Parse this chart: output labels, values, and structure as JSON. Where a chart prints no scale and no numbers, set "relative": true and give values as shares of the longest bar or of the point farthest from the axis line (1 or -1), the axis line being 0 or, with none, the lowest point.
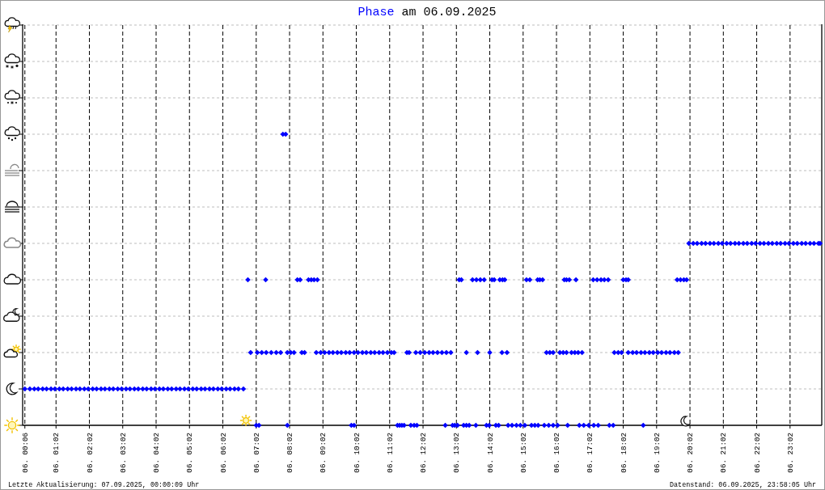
{
  "chart_data": {
    "type": "scatter",
    "title": "am 06.09.2025",
    "annotations": [
      "Letzte Aktualisierung: 07.09.2025, 00:00:09 Uhr",
      "Datenstand: 06.09.2025, 23:58:05 Uhr"
    ],
    "relative": true,
    "grid": true,
    "legend": "top",
    "marker": "diamond",
    "xlim": [
      "2025-09-06T00:02",
      "2025-09-06T23:59"
    ],
    "xticks": [
      {
        "value": "2025-09-06T00:06",
        "label": "06. 00:06"
      },
      {
        "value": "2025-09-06T01:02",
        "label": "06. 01:02"
      },
      {
        "value": "2025-09-06T02:02",
        "label": "06. 02:02"
      },
      {
        "value": "2025-09-06T03:02",
        "label": "06. 03:02"
      },
      {
        "value": "2025-09-06T04:02",
        "label": "06. 04:02"
      },
      {
        "value": "2025-09-06T05:02",
        "label": "06. 05:02"
      },
      {
        "value": "2025-09-06T06:02",
        "label": "06. 06:02"
      },
      {
        "value": "2025-09-06T07:02",
        "label": "06. 07:02"
      },
      {
        "value": "2025-09-06T08:02",
        "label": "06. 08:02"
      },
      {
        "value": "2025-09-06T09:02",
        "label": "06. 09:02"
      },
      {
        "value": "2025-09-06T10:02",
        "label": "06. 10:02"
      },
      {
        "value": "2025-09-06T11:02",
        "label": "06. 11:02"
      },
      {
        "value": "2025-09-06T12:02",
        "label": "06. 12:02"
      },
      {
        "value": "2025-09-06T13:02",
        "label": "06. 13:02"
      },
      {
        "value": "2025-09-06T14:02",
        "label": "06. 14:02"
      },
      {
        "value": "2025-09-06T15:02",
        "label": "06. 15:02"
      },
      {
        "value": "2025-09-06T16:02",
        "label": "06. 16:02"
      },
      {
        "value": "2025-09-06T17:02",
        "label": "06. 17:02"
      },
      {
        "value": "2025-09-06T18:02",
        "label": "06. 18:02"
      },
      {
        "value": "2025-09-06T19:02",
        "label": "06. 19:02"
      },
      {
        "value": "2025-09-06T20:02",
        "label": "06. 20:02"
      },
      {
        "value": "2025-09-06T21:02",
        "label": "06. 21:02"
      },
      {
        "value": "2025-09-06T22:02",
        "label": "06. 22:02"
      },
      {
        "value": "2025-09-06T23:02",
        "label": "06. 23:02"
      }
    ],
    "series": [
      {
        "name": "Phase",
        "color": "#0000ff",
        "x": [
          "2025-09-06T00:06",
          "2025-09-06T00:15",
          "2025-09-06T00:23",
          "2025-09-06T00:30",
          "2025-09-06T00:38",
          "2025-09-06T00:45",
          "2025-09-06T00:53",
          "2025-09-06T01:00",
          "2025-09-06T01:08",
          "2025-09-06T01:15",
          "2025-09-06T01:23",
          "2025-09-06T01:30",
          "2025-09-06T01:38",
          "2025-09-06T01:45",
          "2025-09-06T01:53",
          "2025-09-06T02:00",
          "2025-09-06T02:08",
          "2025-09-06T02:15",
          "2025-09-06T02:23",
          "2025-09-06T02:30",
          "2025-09-06T02:38",
          "2025-09-06T02:45",
          "2025-09-06T02:53",
          "2025-09-06T03:00",
          "2025-09-06T03:08",
          "2025-09-06T03:15",
          "2025-09-06T03:23",
          "2025-09-06T03:30",
          "2025-09-06T03:38",
          "2025-09-06T03:45",
          "2025-09-06T03:53",
          "2025-09-06T04:00",
          "2025-09-06T04:08",
          "2025-09-06T04:15",
          "2025-09-06T04:23",
          "2025-09-06T04:30",
          "2025-09-06T04:38",
          "2025-09-06T04:45",
          "2025-09-06T04:53",
          "2025-09-06T05:00",
          "2025-09-06T05:08",
          "2025-09-06T05:15",
          "2025-09-06T05:23",
          "2025-09-06T05:30",
          "2025-09-06T05:38",
          "2025-09-06T05:45",
          "2025-09-06T05:53",
          "2025-09-06T06:00",
          "2025-09-06T06:08",
          "2025-09-06T06:15",
          "2025-09-06T06:23",
          "2025-09-06T06:30",
          "2025-09-06T06:39",
          "2025-09-06T06:52",
          "2025-09-06T07:04",
          "2025-09-06T07:12",
          "2025-09-06T07:20",
          "2025-09-06T07:29",
          "2025-09-06T07:38",
          "2025-09-06T07:46",
          "2025-09-06T07:58",
          "2025-09-06T08:04",
          "2025-09-06T08:10",
          "2025-09-06T08:24",
          "2025-09-06T08:29",
          "2025-09-06T08:50",
          "2025-09-06T08:58",
          "2025-09-06T09:05",
          "2025-09-06T09:13",
          "2025-09-06T09:20",
          "2025-09-06T09:28",
          "2025-09-06T09:35",
          "2025-09-06T09:43",
          "2025-09-06T09:50",
          "2025-09-06T09:58",
          "2025-09-06T10:05",
          "2025-09-06T10:13",
          "2025-09-06T10:20",
          "2025-09-06T10:28",
          "2025-09-06T10:35",
          "2025-09-06T10:43",
          "2025-09-06T10:50",
          "2025-09-06T10:58",
          "2025-09-06T11:05",
          "2025-09-06T11:10",
          "2025-09-06T11:33",
          "2025-09-06T11:37",
          "2025-09-06T11:49",
          "2025-09-06T11:57",
          "2025-09-06T12:05",
          "2025-09-06T12:13",
          "2025-09-06T12:20",
          "2025-09-06T12:28",
          "2025-09-06T12:36",
          "2025-09-06T12:44",
          "2025-09-06T12:52",
          "2025-09-06T13:20",
          "2025-09-06T13:40",
          "2025-09-06T14:02",
          "2025-09-06T14:24",
          "2025-09-06T14:33",
          "2025-09-06T15:44",
          "2025-09-06T15:50",
          "2025-09-06T15:56",
          "2025-09-06T16:08",
          "2025-09-06T16:14",
          "2025-09-06T16:20",
          "2025-09-06T16:29",
          "2025-09-06T16:35",
          "2025-09-06T16:41",
          "2025-09-06T16:48",
          "2025-09-06T17:46",
          "2025-09-06T17:53",
          "2025-09-06T17:59",
          "2025-09-06T18:11",
          "2025-09-06T18:19",
          "2025-09-06T18:26",
          "2025-09-06T18:34",
          "2025-09-06T18:41",
          "2025-09-06T18:49",
          "2025-09-06T18:56",
          "2025-09-06T19:04",
          "2025-09-06T19:11",
          "2025-09-06T19:19",
          "2025-09-06T19:26",
          "2025-09-06T19:34",
          "2025-09-06T19:41",
          "2025-09-06T07:02",
          "2025-09-06T07:07",
          "2025-09-06T07:58",
          "2025-09-06T09:53",
          "2025-09-06T09:58",
          "2025-09-06T11:16",
          "2025-09-06T11:20",
          "2025-09-06T11:24",
          "2025-09-06T11:28",
          "2025-09-06T11:40",
          "2025-09-06T11:46",
          "2025-09-06T11:51",
          "2025-09-06T12:42",
          "2025-09-06T12:55",
          "2025-09-06T12:59",
          "2025-09-06T13:04",
          "2025-09-06T13:15",
          "2025-09-06T13:20",
          "2025-09-06T13:25",
          "2025-09-06T13:37",
          "2025-09-06T13:56",
          "2025-09-06T14:01",
          "2025-09-06T14:13",
          "2025-09-06T14:18",
          "2025-09-06T14:35",
          "2025-09-06T14:42",
          "2025-09-06T14:50",
          "2025-09-06T14:57",
          "2025-09-06T15:05",
          "2025-09-06T15:17",
          "2025-09-06T15:23",
          "2025-09-06T15:29",
          "2025-09-06T15:40",
          "2025-09-06T15:48",
          "2025-09-06T15:56",
          "2025-09-06T16:04",
          "2025-09-06T16:22",
          "2025-09-06T16:43",
          "2025-09-06T16:51",
          "2025-09-06T17:00",
          "2025-09-06T17:09",
          "2025-09-06T17:17",
          "2025-09-06T17:37",
          "2025-09-06T17:44",
          "2025-09-06T18:38",
          "2025-09-06T06:47",
          "2025-09-06T07:19",
          "2025-09-06T08:16",
          "2025-09-06T08:21",
          "2025-09-06T08:36",
          "2025-09-06T08:41",
          "2025-09-06T08:46",
          "2025-09-06T08:52",
          "2025-09-06T13:07",
          "2025-09-06T13:11",
          "2025-09-06T13:31",
          "2025-09-06T13:38",
          "2025-09-06T13:45",
          "2025-09-06T13:52",
          "2025-09-06T14:06",
          "2025-09-06T14:10",
          "2025-09-06T14:20",
          "2025-09-06T14:25",
          "2025-09-06T14:29",
          "2025-09-06T15:08",
          "2025-09-06T15:14",
          "2025-09-06T15:28",
          "2025-09-06T15:32",
          "2025-09-06T15:37",
          "2025-09-06T16:16",
          "2025-09-06T16:20",
          "2025-09-06T16:25",
          "2025-09-06T16:37",
          "2025-09-06T17:08",
          "2025-09-06T17:15",
          "2025-09-06T17:22",
          "2025-09-06T17:28",
          "2025-09-06T17:35",
          "2025-09-06T18:02",
          "2025-09-06T18:07",
          "2025-09-06T18:11",
          "2025-09-06T19:39",
          "2025-09-06T19:45",
          "2025-09-06T19:51",
          "2025-09-06T19:56",
          "2025-09-06T20:00",
          "2025-09-06T20:08",
          "2025-09-06T20:15",
          "2025-09-06T20:23",
          "2025-09-06T20:30",
          "2025-09-06T20:38",
          "2025-09-06T20:45",
          "2025-09-06T20:53",
          "2025-09-06T21:00",
          "2025-09-06T21:08",
          "2025-09-06T21:15",
          "2025-09-06T21:23",
          "2025-09-06T21:30",
          "2025-09-06T21:38",
          "2025-09-06T21:45",
          "2025-09-06T21:53",
          "2025-09-06T22:00",
          "2025-09-06T22:08",
          "2025-09-06T22:15",
          "2025-09-06T22:23",
          "2025-09-06T22:30",
          "2025-09-06T22:38",
          "2025-09-06T22:45",
          "2025-09-06T22:53",
          "2025-09-06T23:00",
          "2025-09-06T23:08",
          "2025-09-06T23:15",
          "2025-09-06T23:23",
          "2025-09-06T23:30",
          "2025-09-06T23:38",
          "2025-09-06T23:45",
          "2025-09-06T23:53",
          "2025-09-06T23:56",
          "2025-09-06T07:50",
          "2025-09-06T07:55"
        ],
        "values": [
          0.125,
          0.125,
          0.125,
          0.125,
          0.125,
          0.125,
          0.125,
          0.125,
          0.125,
          0.125,
          0.125,
          0.125,
          0.125,
          0.125,
          0.125,
          0.125,
          0.125,
          0.125,
          0.125,
          0.125,
          0.125,
          0.125,
          0.125,
          0.125,
          0.125,
          0.125,
          0.125,
          0.125,
          0.125,
          0.125,
          0.125,
          0.125,
          0.125,
          0.125,
          0.125,
          0.125,
          0.125,
          0.125,
          0.125,
          0.125,
          0.125,
          0.125,
          0.125,
          0.125,
          0.125,
          0.125,
          0.125,
          0.125,
          0.125,
          0.125,
          0.125,
          0.125,
          0.125,
          0.25,
          0.25,
          0.25,
          0.25,
          0.25,
          0.25,
          0.25,
          0.25,
          0.25,
          0.25,
          0.25,
          0.25,
          0.25,
          0.25,
          0.25,
          0.25,
          0.25,
          0.25,
          0.25,
          0.25,
          0.25,
          0.25,
          0.25,
          0.25,
          0.25,
          0.25,
          0.25,
          0.25,
          0.25,
          0.25,
          0.25,
          0.25,
          0.25,
          0.25,
          0.25,
          0.25,
          0.25,
          0.25,
          0.25,
          0.25,
          0.25,
          0.25,
          0.25,
          0.25,
          0.25,
          0.25,
          0.25,
          0.25,
          0.25,
          0.25,
          0.25,
          0.25,
          0.25,
          0.25,
          0.25,
          0.25,
          0.25,
          0.25,
          0.25,
          0.25,
          0.25,
          0.25,
          0.25,
          0.25,
          0.25,
          0.25,
          0.25,
          0.25,
          0.25,
          0.25,
          0.25,
          0.25,
          0.25,
          0.25,
          0,
          0,
          0,
          0,
          0,
          0,
          0,
          0,
          0,
          0,
          0,
          0,
          0,
          0,
          0,
          0,
          0,
          0,
          0,
          0,
          0,
          0,
          0,
          0,
          0,
          0,
          0,
          0,
          0,
          0,
          0,
          0,
          0,
          0,
          0,
          0,
          0,
          0,
          0,
          0,
          0,
          0,
          0,
          0,
          0,
          0.5,
          0.5,
          0.5,
          0.5,
          0.5,
          0.5,
          0.5,
          0.5,
          0.5,
          0.5,
          0.5,
          0.5,
          0.5,
          0.5,
          0.5,
          0.5,
          0.5,
          0.5,
          0.5,
          0.5,
          0.5,
          0.5,
          0.5,
          0.5,
          0.5,
          0.5,
          0.5,
          0.5,
          0.5,
          0.5,
          0.5,
          0.5,
          0.5,
          0.5,
          0.5,
          0.5,
          0.5,
          0.5,
          0.5,
          0.5,
          0.625,
          0.625,
          0.625,
          0.625,
          0.625,
          0.625,
          0.625,
          0.625,
          0.625,
          0.625,
          0.625,
          0.625,
          0.625,
          0.625,
          0.625,
          0.625,
          0.625,
          0.625,
          0.625,
          0.625,
          0.625,
          0.625,
          0.625,
          0.625,
          0.625,
          0.625,
          0.625,
          0.625,
          0.625,
          0.625,
          0.625,
          0.625,
          0.625,
          1,
          1
        ]
      }
    ]
  }
}
